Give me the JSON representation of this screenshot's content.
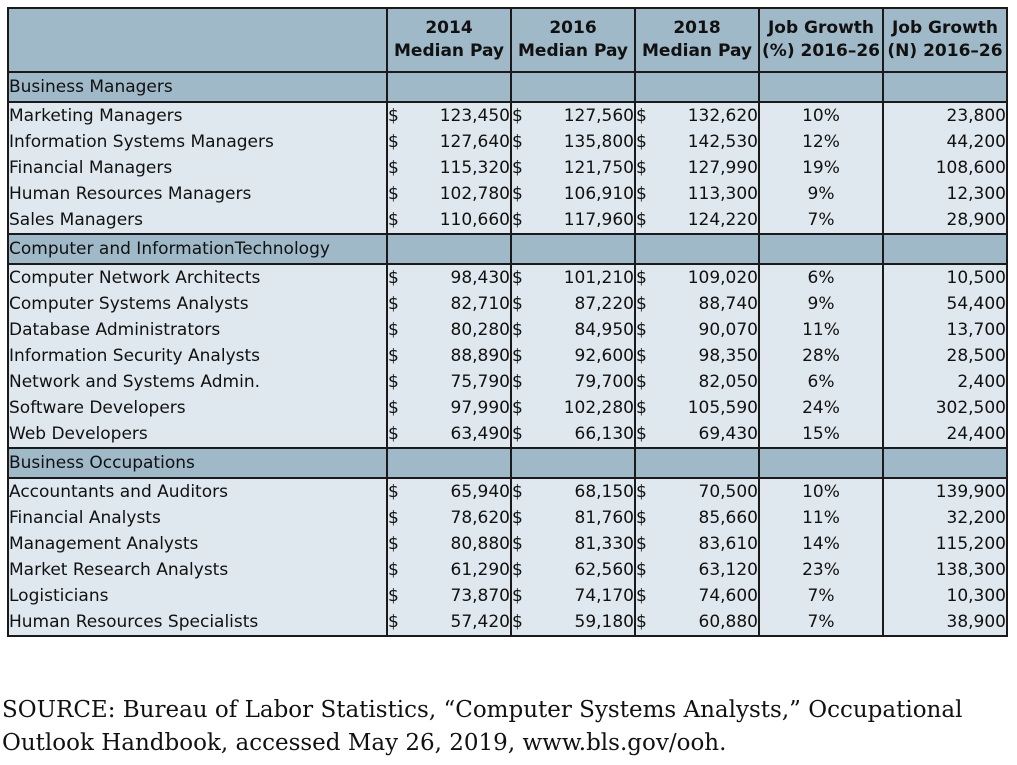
{
  "columns": [
    "2014 Median Pay",
    "2016 Median Pay",
    "2018 Median Pay",
    "Job Growth (%) 2016–26",
    "Job Growth (N) 2016–26"
  ],
  "header_lines": [
    [
      "2014",
      "Median Pay"
    ],
    [
      "2016",
      "Median Pay"
    ],
    [
      "2018",
      "Median Pay"
    ],
    [
      "Job Growth",
      "(%) 2016–26"
    ],
    [
      "Job Growth",
      "(N) 2016–26"
    ]
  ],
  "currency_symbol": "$",
  "sections": [
    {
      "title": "Business Managers",
      "rows": [
        {
          "occupation": "Marketing Managers",
          "pay_2014": "123,450",
          "pay_2016": "127,560",
          "pay_2018": "132,620",
          "growth_pct": "10%",
          "growth_n": "23,800"
        },
        {
          "occupation": "Information Systems Managers",
          "pay_2014": "127,640",
          "pay_2016": "135,800",
          "pay_2018": "142,530",
          "growth_pct": "12%",
          "growth_n": "44,200"
        },
        {
          "occupation": "Financial Managers",
          "pay_2014": "115,320",
          "pay_2016": "121,750",
          "pay_2018": "127,990",
          "growth_pct": "19%",
          "growth_n": "108,600"
        },
        {
          "occupation": "Human Resources Managers",
          "pay_2014": "102,780",
          "pay_2016": "106,910",
          "pay_2018": "113,300",
          "growth_pct": "9%",
          "growth_n": "12,300"
        },
        {
          "occupation": "Sales Managers",
          "pay_2014": "110,660",
          "pay_2016": "117,960",
          "pay_2018": "124,220",
          "growth_pct": "7%",
          "growth_n": "28,900"
        }
      ]
    },
    {
      "title": "Computer and InformationTechnology",
      "rows": [
        {
          "occupation": "Computer Network Architects",
          "pay_2014": "98,430",
          "pay_2016": "101,210",
          "pay_2018": "109,020",
          "growth_pct": "6%",
          "growth_n": "10,500"
        },
        {
          "occupation": "Computer Systems Analysts",
          "pay_2014": "82,710",
          "pay_2016": "87,220",
          "pay_2018": "88,740",
          "growth_pct": "9%",
          "growth_n": "54,400"
        },
        {
          "occupation": "Database Administrators",
          "pay_2014": "80,280",
          "pay_2016": "84,950",
          "pay_2018": "90,070",
          "growth_pct": "11%",
          "growth_n": "13,700"
        },
        {
          "occupation": "Information Security Analysts",
          "pay_2014": "88,890",
          "pay_2016": "92,600",
          "pay_2018": "98,350",
          "growth_pct": "28%",
          "growth_n": "28,500"
        },
        {
          "occupation": "Network and Systems Admin.",
          "pay_2014": "75,790",
          "pay_2016": "79,700",
          "pay_2018": "82,050",
          "growth_pct": "6%",
          "growth_n": "2,400"
        },
        {
          "occupation": "Software Developers",
          "pay_2014": "97,990",
          "pay_2016": "102,280",
          "pay_2018": "105,590",
          "growth_pct": "24%",
          "growth_n": "302,500"
        },
        {
          "occupation": "Web Developers",
          "pay_2014": "63,490",
          "pay_2016": "66,130",
          "pay_2018": "69,430",
          "growth_pct": "15%",
          "growth_n": "24,400"
        }
      ]
    },
    {
      "title": "Business Occupations",
      "rows": [
        {
          "occupation": "Accountants and Auditors",
          "pay_2014": "65,940",
          "pay_2016": "68,150",
          "pay_2018": "70,500",
          "growth_pct": "10%",
          "growth_n": "139,900"
        },
        {
          "occupation": "Financial Analysts",
          "pay_2014": "78,620",
          "pay_2016": "81,760",
          "pay_2018": "85,660",
          "growth_pct": "11%",
          "growth_n": "32,200"
        },
        {
          "occupation": "Management Analysts",
          "pay_2014": "80,880",
          "pay_2016": "81,330",
          "pay_2018": "83,610",
          "growth_pct": "14%",
          "growth_n": "115,200"
        },
        {
          "occupation": "Market Research Analysts",
          "pay_2014": "61,290",
          "pay_2016": "62,560",
          "pay_2018": "63,120",
          "growth_pct": "23%",
          "growth_n": "138,300"
        },
        {
          "occupation": "Logisticians",
          "pay_2014": "73,870",
          "pay_2016": "74,170",
          "pay_2018": "74,600",
          "growth_pct": "7%",
          "growth_n": "10,300"
        },
        {
          "occupation": "Human Resources Specialists",
          "pay_2014": "57,420",
          "pay_2016": "59,180",
          "pay_2018": "60,880",
          "growth_pct": "7%",
          "growth_n": "38,900"
        }
      ]
    }
  ],
  "source": "SOURCE: Bureau of Labor Statistics, “Computer Systems Analysts,” Occupational Outlook Handbook, accessed May 26, 2019, www.bls.gov/ooh.",
  "colors": {
    "header_fill": "#9fb9c8",
    "body_fill": "#dfe8ee",
    "border": "#1a1a1a"
  }
}
